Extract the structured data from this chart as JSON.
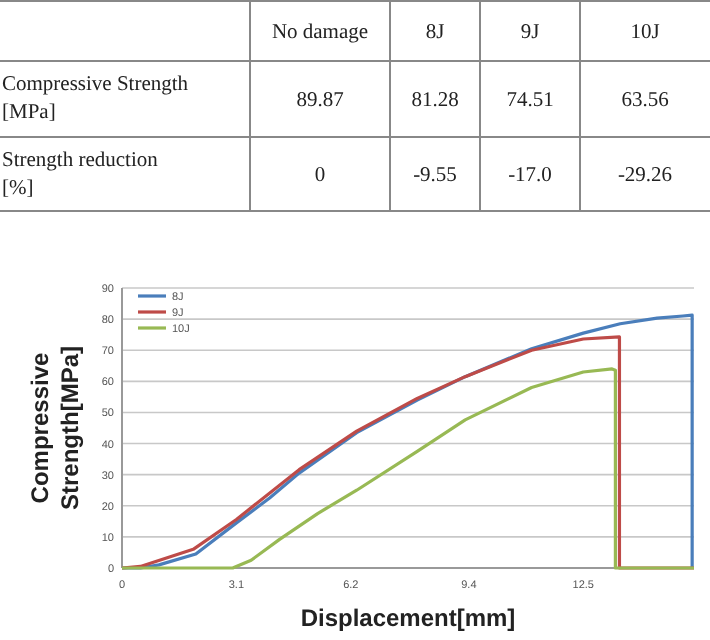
{
  "chart_data": [
    {
      "type": "other",
      "categories": [
        "No damage",
        "8J",
        "9J",
        "10J"
      ],
      "y_categories": [
        "Compressive Strength [MPa]",
        "Strength reduction [%]"
      ],
      "cell_labels": [
        [
          "89.87",
          "81.28",
          "74.51",
          "63.56"
        ],
        [
          "0",
          "-9.55",
          "-17.0",
          "-29.26"
        ]
      ]
    },
    {
      "type": "line",
      "xlabel": "Displacement[mm]",
      "ylabel": "Compressive Strength[MPa]",
      "xlim": [
        0,
        15.5
      ],
      "ylim": [
        0,
        90
      ],
      "xticks": [
        0,
        3.1,
        6.2,
        9.4,
        12.5
      ],
      "yticks": [
        0,
        10,
        20,
        30,
        40,
        50,
        60,
        70,
        80,
        90
      ],
      "grid": "y",
      "legend": "top left",
      "marker": "none",
      "line_style": "solid",
      "series": [
        {
          "name": "8J",
          "color": "#4a7ebb",
          "x": [
            0,
            0.5,
            1,
            2,
            3.1,
            4,
            4.8,
            6.36,
            8,
            9.3,
            11.1,
            12.5,
            13.5,
            14.5,
            15.2,
            15.45,
            15.45
          ],
          "values": [
            0,
            0,
            1,
            4.5,
            14.5,
            22.5,
            30.5,
            43.5,
            54,
            61.5,
            70.5,
            75.5,
            78.5,
            80.3,
            81,
            81.3,
            0
          ]
        },
        {
          "name": "9J",
          "color": "#be4b48",
          "x": [
            0,
            0.5,
            1.93,
            3.1,
            4.8,
            6.36,
            8,
            9.3,
            11.1,
            12.5,
            13.48,
            13.48,
            15.5
          ],
          "values": [
            0,
            0.5,
            6,
            15.6,
            31.6,
            44,
            54.5,
            61.5,
            70,
            73.6,
            74.3,
            0,
            0
          ]
        },
        {
          "name": "10J",
          "color": "#98b954",
          "x": [
            0,
            3.0,
            3.5,
            4.27,
            5.3,
            6.36,
            8,
            9.3,
            11.1,
            12.5,
            13.28,
            13.37,
            13.37,
            15.5
          ],
          "values": [
            0,
            0,
            2.5,
            9.2,
            17.5,
            25,
            37.5,
            47.6,
            58,
            63,
            64,
            63.6,
            0,
            0
          ]
        }
      ]
    }
  ]
}
